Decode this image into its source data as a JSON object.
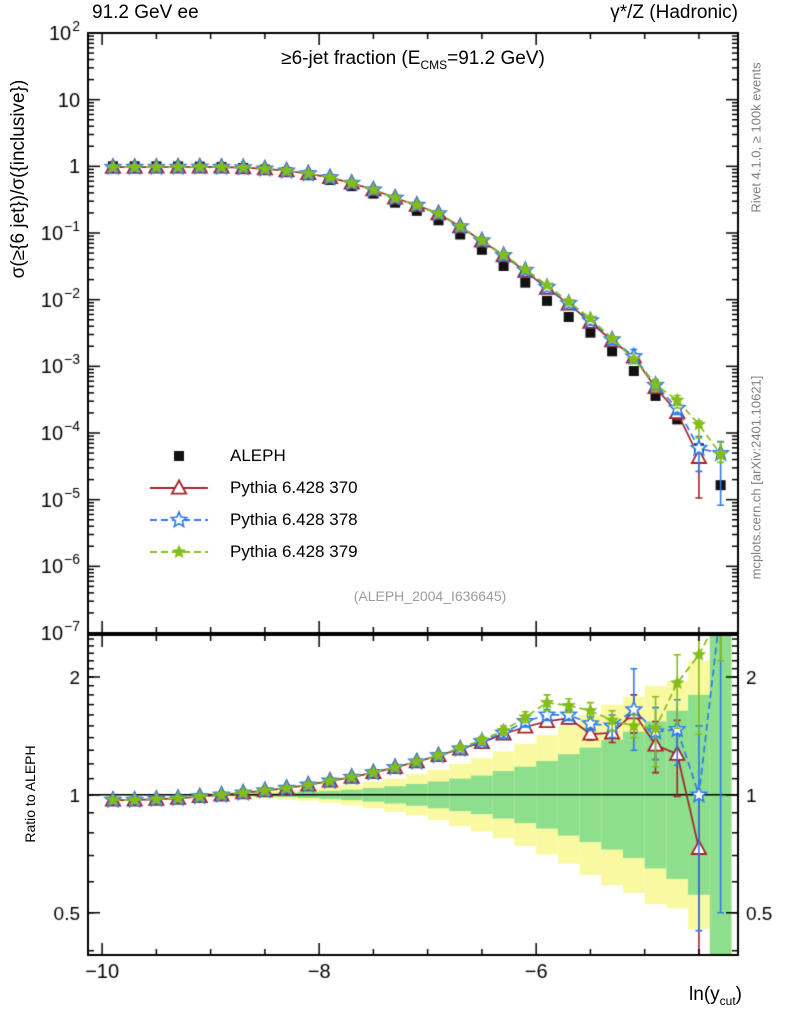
{
  "header": {
    "left": "91.2 GeV ee",
    "right": "γ*/Z (Hadronic)"
  },
  "panel_title": {
    "pre": "≥6-jet fraction (E",
    "sub": "CMS",
    "post": "=91.2 GeV)"
  },
  "watermark": "(ALEPH_2004_I636645)",
  "side_notes": {
    "top": "Rivet 4.1.0, ≥ 100k events",
    "bottom": "mcplots.cern.ch [arXiv:2401.10621]"
  },
  "axes": {
    "main_ylabel": "σ(≥{6 jet})/σ({inclusive})",
    "ratio_ylabel": "Ratio to ALEPH",
    "xlabel": {
      "pre": "ln(y",
      "sub": "cut",
      "post": ")"
    }
  },
  "chart_data": {
    "type": "line",
    "title": "≥6-jet fraction (E_CMS=91.2 GeV)",
    "xlabel": "ln(y_cut)",
    "ylabel_main": "σ(≥{6 jet})/σ({inclusive})",
    "ylabel_ratio": "Ratio to ALEPH",
    "xlim": [
      -10.13,
      -4.14
    ],
    "x_major_ticks": [
      -10,
      -8,
      -6
    ],
    "x_minor_step": 0.5,
    "main_ylim_log10": [
      -7,
      2
    ],
    "ratio_ylim": [
      0.39,
      2.56
    ],
    "ratio_major_ticks": [
      0.5,
      1,
      2
    ],
    "legend_position": "middle-left",
    "x": [
      -9.9,
      -9.7,
      -9.5,
      -9.3,
      -9.1,
      -8.9,
      -8.7,
      -8.5,
      -8.3,
      -8.1,
      -7.9,
      -7.7,
      -7.5,
      -7.3,
      -7.1,
      -6.9,
      -6.7,
      -6.5,
      -6.3,
      -6.1,
      -5.9,
      -5.7,
      -5.5,
      -5.3,
      -5.1,
      -4.9,
      -4.7,
      -4.5,
      -4.3
    ],
    "series": [
      {
        "name": "ALEPH",
        "color": "#111111",
        "marker": "square",
        "line": "none",
        "values": [
          1.0,
          1.0,
          0.999,
          0.997,
          0.99,
          0.975,
          0.945,
          0.895,
          0.825,
          0.735,
          0.625,
          0.505,
          0.39,
          0.285,
          0.215,
          0.155,
          0.095,
          0.056,
          0.032,
          0.018,
          0.0096,
          0.0055,
          0.0032,
          0.00168,
          0.00085,
          0.00036,
          0.00016,
          5.9e-05,
          1.65e-05
        ]
      },
      {
        "name": "Pythia 6.428 370",
        "color": "#a1242c",
        "marker": "triangle-open",
        "line": "solid",
        "ratio": [
          0.97,
          0.97,
          0.975,
          0.98,
          0.99,
          1.0,
          1.012,
          1.025,
          1.04,
          1.06,
          1.085,
          1.11,
          1.14,
          1.175,
          1.215,
          1.26,
          1.31,
          1.36,
          1.43,
          1.49,
          1.54,
          1.57,
          1.43,
          1.44,
          1.62,
          1.34,
          1.27,
          0.73,
          null
        ],
        "err_hi": [
          0.005,
          0.005,
          0.005,
          0.005,
          0.005,
          0.005,
          0.006,
          0.006,
          0.007,
          0.008,
          0.009,
          0.01,
          0.01,
          0.012,
          0.015,
          0.02,
          0.02,
          0.03,
          0.03,
          0.04,
          0.04,
          0.05,
          0.05,
          0.08,
          0.18,
          0.2,
          0.28,
          0.25,
          0
        ],
        "err_lo": [
          0.005,
          0.005,
          0.005,
          0.005,
          0.005,
          0.005,
          0.006,
          0.006,
          0.007,
          0.008,
          0.009,
          0.01,
          0.01,
          0.012,
          0.015,
          0.02,
          0.02,
          0.03,
          0.03,
          0.04,
          0.04,
          0.05,
          0.05,
          0.08,
          0.18,
          0.2,
          0.28,
          0.55,
          0
        ]
      },
      {
        "name": "Pythia 6.428 378",
        "color": "#2f7bea",
        "marker": "star-open",
        "line": "dashed",
        "ratio": [
          0.97,
          0.97,
          0.975,
          0.98,
          0.99,
          1.0,
          1.012,
          1.025,
          1.04,
          1.06,
          1.085,
          1.11,
          1.14,
          1.175,
          1.215,
          1.26,
          1.31,
          1.37,
          1.44,
          1.54,
          1.6,
          1.6,
          1.52,
          1.5,
          1.65,
          1.45,
          1.47,
          1.0,
          3.0
        ],
        "err_hi": [
          0.005,
          0.005,
          0.005,
          0.005,
          0.005,
          0.005,
          0.006,
          0.006,
          0.007,
          0.008,
          0.009,
          0.01,
          0.01,
          0.012,
          0.015,
          0.02,
          0.02,
          0.03,
          0.04,
          0.05,
          0.05,
          0.05,
          0.06,
          0.1,
          0.45,
          0.22,
          0.28,
          0.5,
          1.5
        ],
        "err_lo": [
          0.005,
          0.005,
          0.005,
          0.005,
          0.005,
          0.005,
          0.006,
          0.006,
          0.007,
          0.008,
          0.009,
          0.01,
          0.01,
          0.012,
          0.015,
          0.02,
          0.02,
          0.03,
          0.04,
          0.05,
          0.05,
          0.05,
          0.06,
          0.1,
          0.35,
          0.22,
          0.28,
          0.55,
          2.5
        ]
      },
      {
        "name": "Pythia 6.428 379",
        "color": "#85bd18",
        "marker": "star",
        "line": "dashed",
        "ratio": [
          0.97,
          0.97,
          0.975,
          0.98,
          0.99,
          1.0,
          1.012,
          1.025,
          1.04,
          1.06,
          1.085,
          1.11,
          1.14,
          1.175,
          1.215,
          1.26,
          1.32,
          1.38,
          1.46,
          1.58,
          1.72,
          1.69,
          1.64,
          1.55,
          1.5,
          1.48,
          1.93,
          2.28,
          2.9
        ],
        "err_hi": [
          0.005,
          0.005,
          0.005,
          0.005,
          0.005,
          0.005,
          0.006,
          0.006,
          0.007,
          0.008,
          0.009,
          0.01,
          0.01,
          0.012,
          0.015,
          0.02,
          0.02,
          0.03,
          0.04,
          0.05,
          0.08,
          0.07,
          0.08,
          0.09,
          0.1,
          0.3,
          0.35,
          0.28,
          1.5
        ],
        "err_lo": [
          0.005,
          0.005,
          0.005,
          0.005,
          0.005,
          0.005,
          0.006,
          0.006,
          0.007,
          0.008,
          0.009,
          0.01,
          0.01,
          0.012,
          0.015,
          0.02,
          0.02,
          0.03,
          0.04,
          0.05,
          0.08,
          0.07,
          0.08,
          0.09,
          0.1,
          0.3,
          0.45,
          0.85,
          0.7
        ]
      }
    ],
    "bands": {
      "yellow_color": "#f9f9a2",
      "green_color": "#8ddf8d",
      "yellow_hi": [
        1.004,
        1.004,
        1.005,
        1.006,
        1.008,
        1.01,
        1.014,
        1.019,
        1.026,
        1.035,
        1.047,
        1.062,
        1.082,
        1.1,
        1.13,
        1.16,
        1.2,
        1.24,
        1.29,
        1.35,
        1.42,
        1.5,
        1.6,
        1.7,
        1.78,
        1.9,
        1.95,
        2.2,
        2.6
      ],
      "yellow_lo": [
        0.996,
        0.996,
        0.995,
        0.994,
        0.992,
        0.99,
        0.986,
        0.981,
        0.975,
        0.966,
        0.955,
        0.941,
        0.924,
        0.905,
        0.885,
        0.862,
        0.833,
        0.806,
        0.775,
        0.741,
        0.704,
        0.667,
        0.625,
        0.588,
        0.562,
        0.526,
        0.513,
        0.455,
        0.385
      ],
      "green_hi": [
        1.002,
        1.002,
        1.002,
        1.003,
        1.004,
        1.005,
        1.007,
        1.01,
        1.013,
        1.018,
        1.024,
        1.031,
        1.041,
        1.052,
        1.066,
        1.082,
        1.1,
        1.12,
        1.15,
        1.18,
        1.22,
        1.27,
        1.32,
        1.38,
        1.45,
        1.54,
        1.64,
        1.8,
        2.6
      ],
      "green_lo": [
        0.998,
        0.998,
        0.998,
        0.997,
        0.996,
        0.995,
        0.993,
        0.99,
        0.987,
        0.982,
        0.977,
        0.97,
        0.961,
        0.951,
        0.938,
        0.924,
        0.909,
        0.893,
        0.87,
        0.847,
        0.82,
        0.787,
        0.758,
        0.725,
        0.69,
        0.649,
        0.61,
        0.556,
        0.385
      ]
    }
  }
}
